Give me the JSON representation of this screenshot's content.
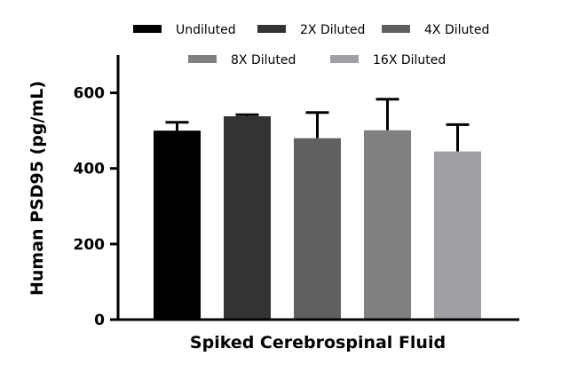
{
  "chart_data": {
    "type": "bar",
    "title": "",
    "xlabel": "Spiked Cerebrospinal Fluid",
    "ylabel": "Human PSD95 (pg/mL)",
    "ylim": [
      0,
      700
    ],
    "yticks": [
      0,
      200,
      400,
      600
    ],
    "ytick_labels": [
      "0",
      "200",
      "400",
      "600"
    ],
    "grid": false,
    "legend_placement": "top",
    "categories": [
      "Undiluted",
      "2X Diluted",
      "4X Diluted",
      "8X Diluted",
      "16X Diluted"
    ],
    "values": [
      500,
      538,
      480,
      501,
      445
    ],
    "error_upper": [
      22,
      4,
      68,
      82,
      71
    ],
    "colors": [
      "#000000",
      "#333333",
      "#606060",
      "#808080",
      "#a0a0a4"
    ]
  }
}
